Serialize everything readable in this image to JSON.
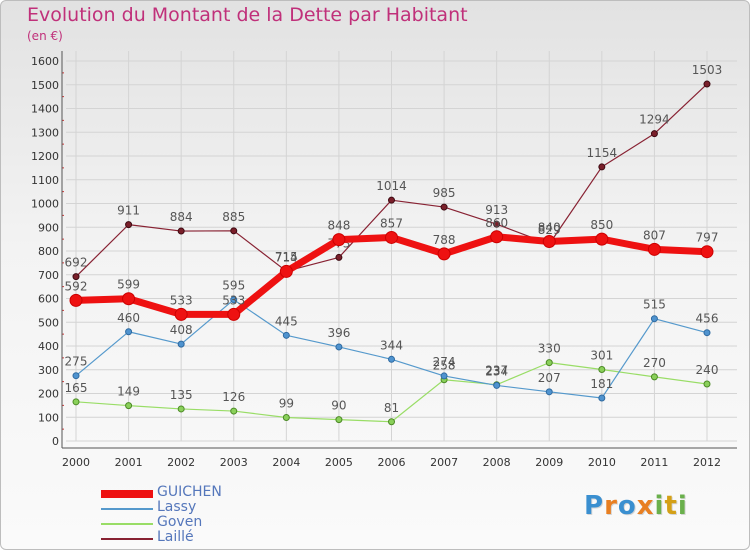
{
  "title": "Evolution du Montant de la Dette par Habitant",
  "subtitle": "(en €)",
  "logo": {
    "text": "Proxiti",
    "letters": [
      "P",
      "r",
      "o",
      "x",
      "i",
      "t",
      "i"
    ],
    "colors": [
      "#3a8fd0",
      "#e87f22",
      "#3a8fd0",
      "#e87f22",
      "#6ab04c",
      "#d4a017",
      "#6ab04c"
    ]
  },
  "chart_data": {
    "type": "line",
    "title": "Evolution du Montant de la Dette par Habitant",
    "subtitle": "(en €)",
    "x": [
      "2000",
      "2001",
      "2002",
      "2003",
      "2004",
      "2005",
      "2006",
      "2007",
      "2008",
      "2009",
      "2010",
      "2011",
      "2012"
    ],
    "ylim": [
      0,
      1600
    ],
    "yticks": [
      0,
      100,
      200,
      300,
      400,
      500,
      600,
      700,
      800,
      900,
      1000,
      1100,
      1200,
      1300,
      1400,
      1500,
      1600
    ],
    "grid": true,
    "legend_position": "bottom-left",
    "series": [
      {
        "name": "GUICHEN",
        "color": "#ee1111",
        "values": [
          592,
          599,
          533,
          533,
          714,
          848,
          857,
          788,
          860,
          840,
          850,
          807,
          797
        ],
        "labels": [
          "592",
          "599",
          "533",
          "533",
          "714",
          "848",
          "857",
          "788",
          "860",
          "840",
          "850",
          "807",
          "797"
        ]
      },
      {
        "name": "Lassy",
        "color": "#5599cc",
        "values": [
          275,
          460,
          408,
          595,
          445,
          396,
          344,
          274,
          234,
          207,
          181,
          515,
          456
        ],
        "labels": [
          "275",
          "460",
          "408",
          "595",
          "445",
          "396",
          "344",
          "274",
          "234",
          "207",
          "181",
          "515",
          "456"
        ]
      },
      {
        "name": "Goven",
        "color": "#99dd66",
        "values": [
          165,
          149,
          135,
          126,
          99,
          90,
          81,
          258,
          237,
          330,
          301,
          270,
          240
        ],
        "labels": [
          "165",
          "149",
          "135",
          "126",
          "99",
          "90",
          "81",
          "258",
          "237",
          "330",
          "301",
          "270",
          "240"
        ]
      },
      {
        "name": "Laillé",
        "color": "#882233",
        "values": [
          692,
          911,
          884,
          885,
          715,
          773,
          1014,
          985,
          913,
          829,
          1154,
          1294,
          1503
        ],
        "labels": [
          "692",
          "911",
          "884",
          "885",
          "715",
          "773",
          "1014",
          "985",
          "913",
          "829",
          "1154",
          "1294",
          "1503"
        ]
      }
    ]
  }
}
